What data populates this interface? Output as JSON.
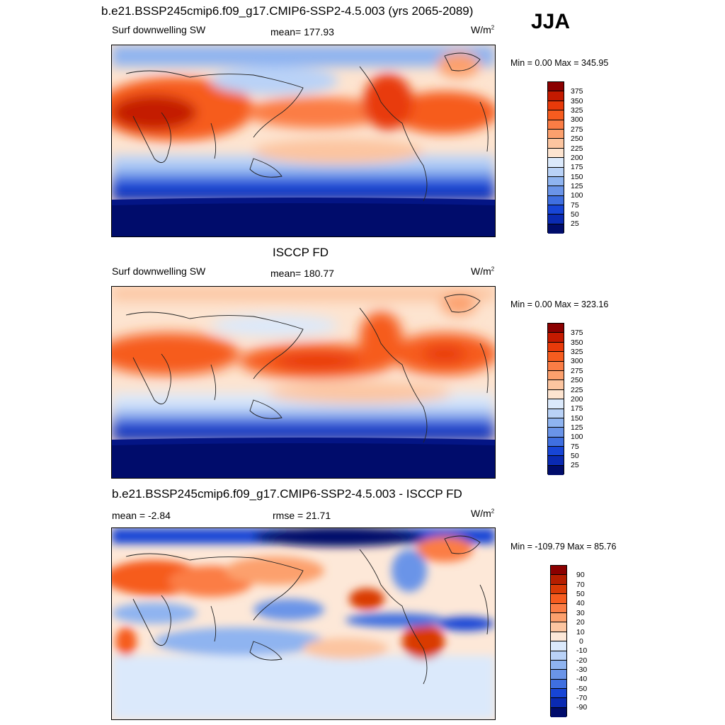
{
  "season": "JJA",
  "colors": {
    "abs_scale": [
      "#8b0000",
      "#c41a00",
      "#e83a0a",
      "#f65c1f",
      "#fb7d45",
      "#fca06d",
      "#fcc5a0",
      "#fde4d0",
      "#dbe9fb",
      "#b9d2f7",
      "#8fb4f0",
      "#6a94e8",
      "#3f6fe0",
      "#1745d6",
      "#0a2ab2",
      "#041585",
      "#000c6b"
    ],
    "diff_scale": [
      "#8b0000",
      "#b51e00",
      "#d93a06",
      "#f65c1f",
      "#fb7d45",
      "#fca06d",
      "#fcc5a0",
      "#fde8d8",
      "#dbe9fb",
      "#b9d2f7",
      "#8fb4f0",
      "#6a94e8",
      "#3f6fe0",
      "#1745d6",
      "#0a2ab2",
      "#000c6b"
    ]
  },
  "panels": [
    {
      "title": "b.e21.BSSP245cmip6.f09_g17.CMIP6-SSP2-4.5.003 (yrs 2065-2089)",
      "left": "Surf downwelling SW",
      "center": "mean= 177.93",
      "units": "W/m",
      "units_sup": "2",
      "minmax": "Min =   0.00 Max = 345.95",
      "colorbar_labels": [
        "375",
        "350",
        "325",
        "300",
        "275",
        "250",
        "225",
        "200",
        "175",
        "150",
        "125",
        "100",
        "75",
        "50",
        "25"
      ]
    },
    {
      "title": "ISCCP FD",
      "left": "Surf downwelling SW",
      "center": "mean= 180.77",
      "units": "W/m",
      "units_sup": "2",
      "minmax": "Min =   0.00 Max = 323.16",
      "colorbar_labels": [
        "375",
        "350",
        "325",
        "300",
        "275",
        "250",
        "225",
        "200",
        "175",
        "150",
        "125",
        "100",
        "75",
        "50",
        "25"
      ]
    },
    {
      "title": "b.e21.BSSP245cmip6.f09_g17.CMIP6-SSP2-4.5.003 - ISCCP FD",
      "left": "mean =  -2.84",
      "center": "rmse =  21.71",
      "units": "W/m",
      "units_sup": "2",
      "minmax": "Min = -109.79 Max =  85.76",
      "colorbar_labels": [
        "90",
        "70",
        "50",
        "40",
        "30",
        "20",
        "10",
        "0",
        "-10",
        "-20",
        "-30",
        "-40",
        "-50",
        "-70",
        "-90"
      ]
    }
  ]
}
